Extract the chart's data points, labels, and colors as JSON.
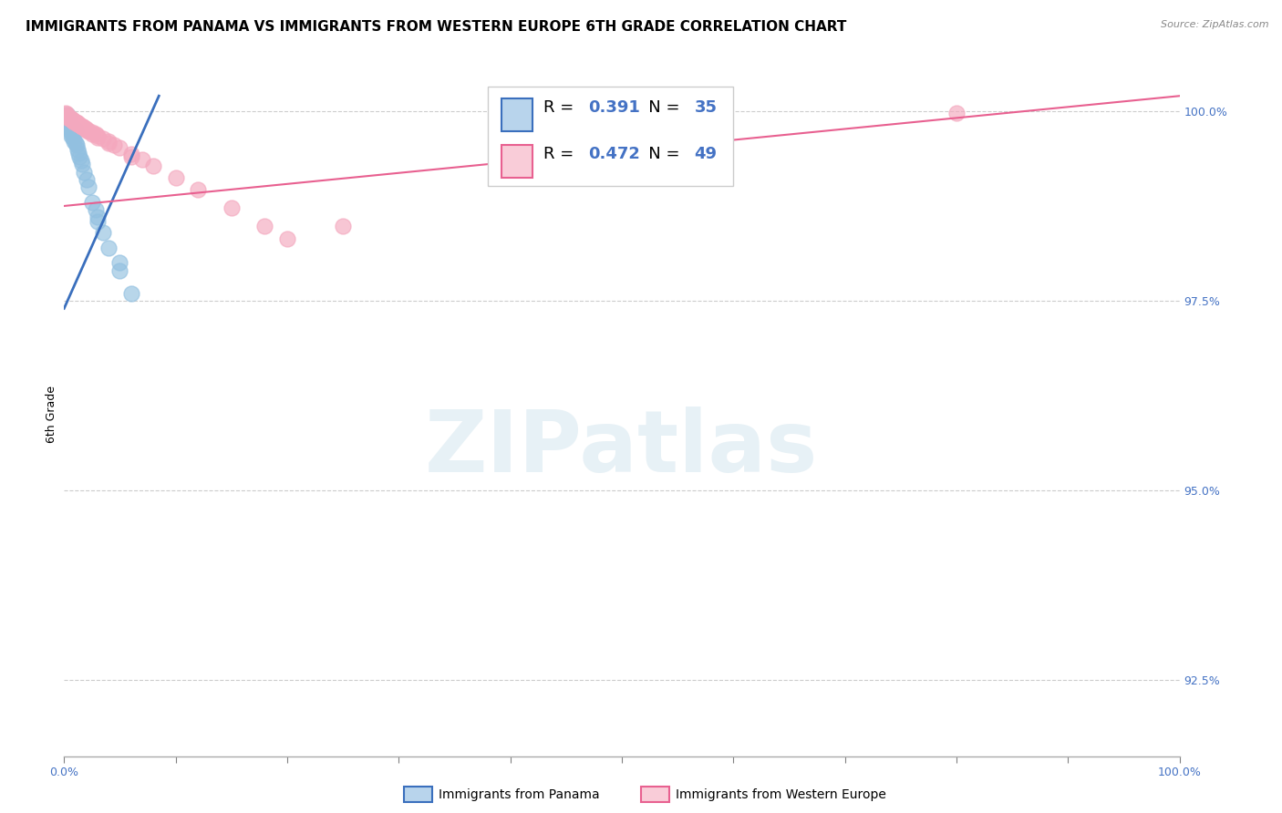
{
  "title": "IMMIGRANTS FROM PANAMA VS IMMIGRANTS FROM WESTERN EUROPE 6TH GRADE CORRELATION CHART",
  "source": "Source: ZipAtlas.com",
  "ylabel": "6th Grade",
  "watermark": "ZIPatlas",
  "legend_blue_label": "Immigrants from Panama",
  "legend_pink_label": "Immigrants from Western Europe",
  "R_blue": 0.391,
  "N_blue": 35,
  "R_pink": 0.472,
  "N_pink": 49,
  "xlim": [
    0.0,
    1.0
  ],
  "ylim": [
    0.915,
    1.005
  ],
  "yticks": [
    0.925,
    0.95,
    0.975,
    1.0
  ],
  "ytick_labels": [
    "92.5%",
    "95.0%",
    "97.5%",
    "100.0%"
  ],
  "blue_color": "#92c0e0",
  "pink_color": "#f4a8be",
  "blue_line_color": "#3a6fbd",
  "pink_line_color": "#e86090",
  "blue_scatter_x": [
    0.001,
    0.002,
    0.003,
    0.003,
    0.004,
    0.004,
    0.005,
    0.005,
    0.006,
    0.007,
    0.007,
    0.008,
    0.009,
    0.01,
    0.011,
    0.012,
    0.013,
    0.014,
    0.015,
    0.016,
    0.018,
    0.02,
    0.022,
    0.025,
    0.028,
    0.03,
    0.035,
    0.04,
    0.05,
    0.06,
    0.01,
    0.006,
    0.004,
    0.05,
    0.03
  ],
  "blue_scatter_y": [
    0.999,
    0.9988,
    0.9985,
    0.9995,
    0.9992,
    0.9982,
    0.9988,
    0.9978,
    0.9972,
    0.997,
    0.998,
    0.9965,
    0.996,
    0.9958,
    0.9955,
    0.995,
    0.9945,
    0.994,
    0.9935,
    0.993,
    0.992,
    0.991,
    0.99,
    0.988,
    0.987,
    0.986,
    0.984,
    0.982,
    0.979,
    0.976,
    0.9975,
    0.9968,
    0.9985,
    0.98,
    0.9855
  ],
  "pink_scatter_x": [
    0.001,
    0.002,
    0.003,
    0.004,
    0.005,
    0.006,
    0.007,
    0.008,
    0.009,
    0.01,
    0.011,
    0.012,
    0.013,
    0.014,
    0.015,
    0.016,
    0.017,
    0.018,
    0.019,
    0.02,
    0.022,
    0.025,
    0.028,
    0.03,
    0.035,
    0.04,
    0.045,
    0.05,
    0.06,
    0.07,
    0.08,
    0.1,
    0.12,
    0.15,
    0.18,
    0.2,
    0.003,
    0.005,
    0.007,
    0.009,
    0.012,
    0.016,
    0.02,
    0.025,
    0.03,
    0.04,
    0.06,
    0.8,
    0.25
  ],
  "pink_scatter_y": [
    0.9998,
    0.9996,
    0.9994,
    0.9993,
    0.9992,
    0.999,
    0.9989,
    0.9988,
    0.9987,
    0.9986,
    0.9985,
    0.9984,
    0.9983,
    0.9982,
    0.9981,
    0.998,
    0.9979,
    0.9978,
    0.9977,
    0.9976,
    0.9974,
    0.9972,
    0.997,
    0.9968,
    0.9964,
    0.996,
    0.9956,
    0.9952,
    0.9944,
    0.9936,
    0.9928,
    0.9912,
    0.9896,
    0.9872,
    0.9848,
    0.9832,
    0.9992,
    0.999,
    0.9988,
    0.9986,
    0.9983,
    0.9979,
    0.9975,
    0.997,
    0.9965,
    0.9958,
    0.994,
    0.9998,
    0.9848
  ],
  "background_color": "#ffffff",
  "grid_color": "#cccccc",
  "title_fontsize": 11,
  "axis_label_fontsize": 9,
  "tick_fontsize": 9,
  "legend_box_color_blue": "#b8d4ec",
  "legend_box_color_pink": "#f9ccd8"
}
